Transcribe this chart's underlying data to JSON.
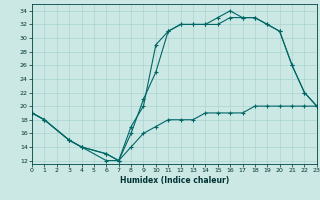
{
  "xlabel": "Humidex (Indice chaleur)",
  "bg_color": "#cce8e4",
  "line_color": "#006666",
  "grid_color": "#aad4d0",
  "xlim": [
    0,
    23
  ],
  "ylim": [
    11.5,
    35
  ],
  "yticks": [
    12,
    14,
    16,
    18,
    20,
    22,
    24,
    26,
    28,
    30,
    32,
    34
  ],
  "xticks": [
    0,
    1,
    2,
    3,
    4,
    5,
    6,
    7,
    8,
    9,
    10,
    11,
    12,
    13,
    14,
    15,
    16,
    17,
    18,
    19,
    20,
    21,
    22,
    23
  ],
  "line1_x": [
    0,
    1,
    3,
    4,
    6,
    7,
    8,
    9,
    10,
    11,
    12,
    13,
    14,
    15,
    16,
    17,
    18,
    19,
    20,
    21,
    22,
    23
  ],
  "line1_y": [
    19,
    18,
    15,
    14,
    12,
    12,
    17,
    20,
    29,
    31,
    32,
    32,
    32,
    33,
    34,
    33,
    33,
    32,
    31,
    26,
    22,
    20
  ],
  "line2_x": [
    0,
    1,
    3,
    4,
    6,
    7,
    8,
    9,
    10,
    11,
    12,
    13,
    14,
    15,
    16,
    17,
    18,
    19,
    20,
    21,
    22,
    23
  ],
  "line2_y": [
    19,
    18,
    15,
    14,
    13,
    12,
    16,
    21,
    25,
    31,
    32,
    32,
    32,
    32,
    33,
    33,
    33,
    32,
    31,
    26,
    22,
    20
  ],
  "line3_x": [
    0,
    1,
    3,
    4,
    6,
    7,
    8,
    9,
    10,
    11,
    12,
    13,
    14,
    15,
    16,
    17,
    18,
    19,
    20,
    21,
    22,
    23
  ],
  "line3_y": [
    19,
    18,
    15,
    14,
    13,
    12,
    14,
    16,
    17,
    18,
    18,
    18,
    19,
    19,
    19,
    19,
    20,
    20,
    20,
    20,
    20,
    20
  ]
}
